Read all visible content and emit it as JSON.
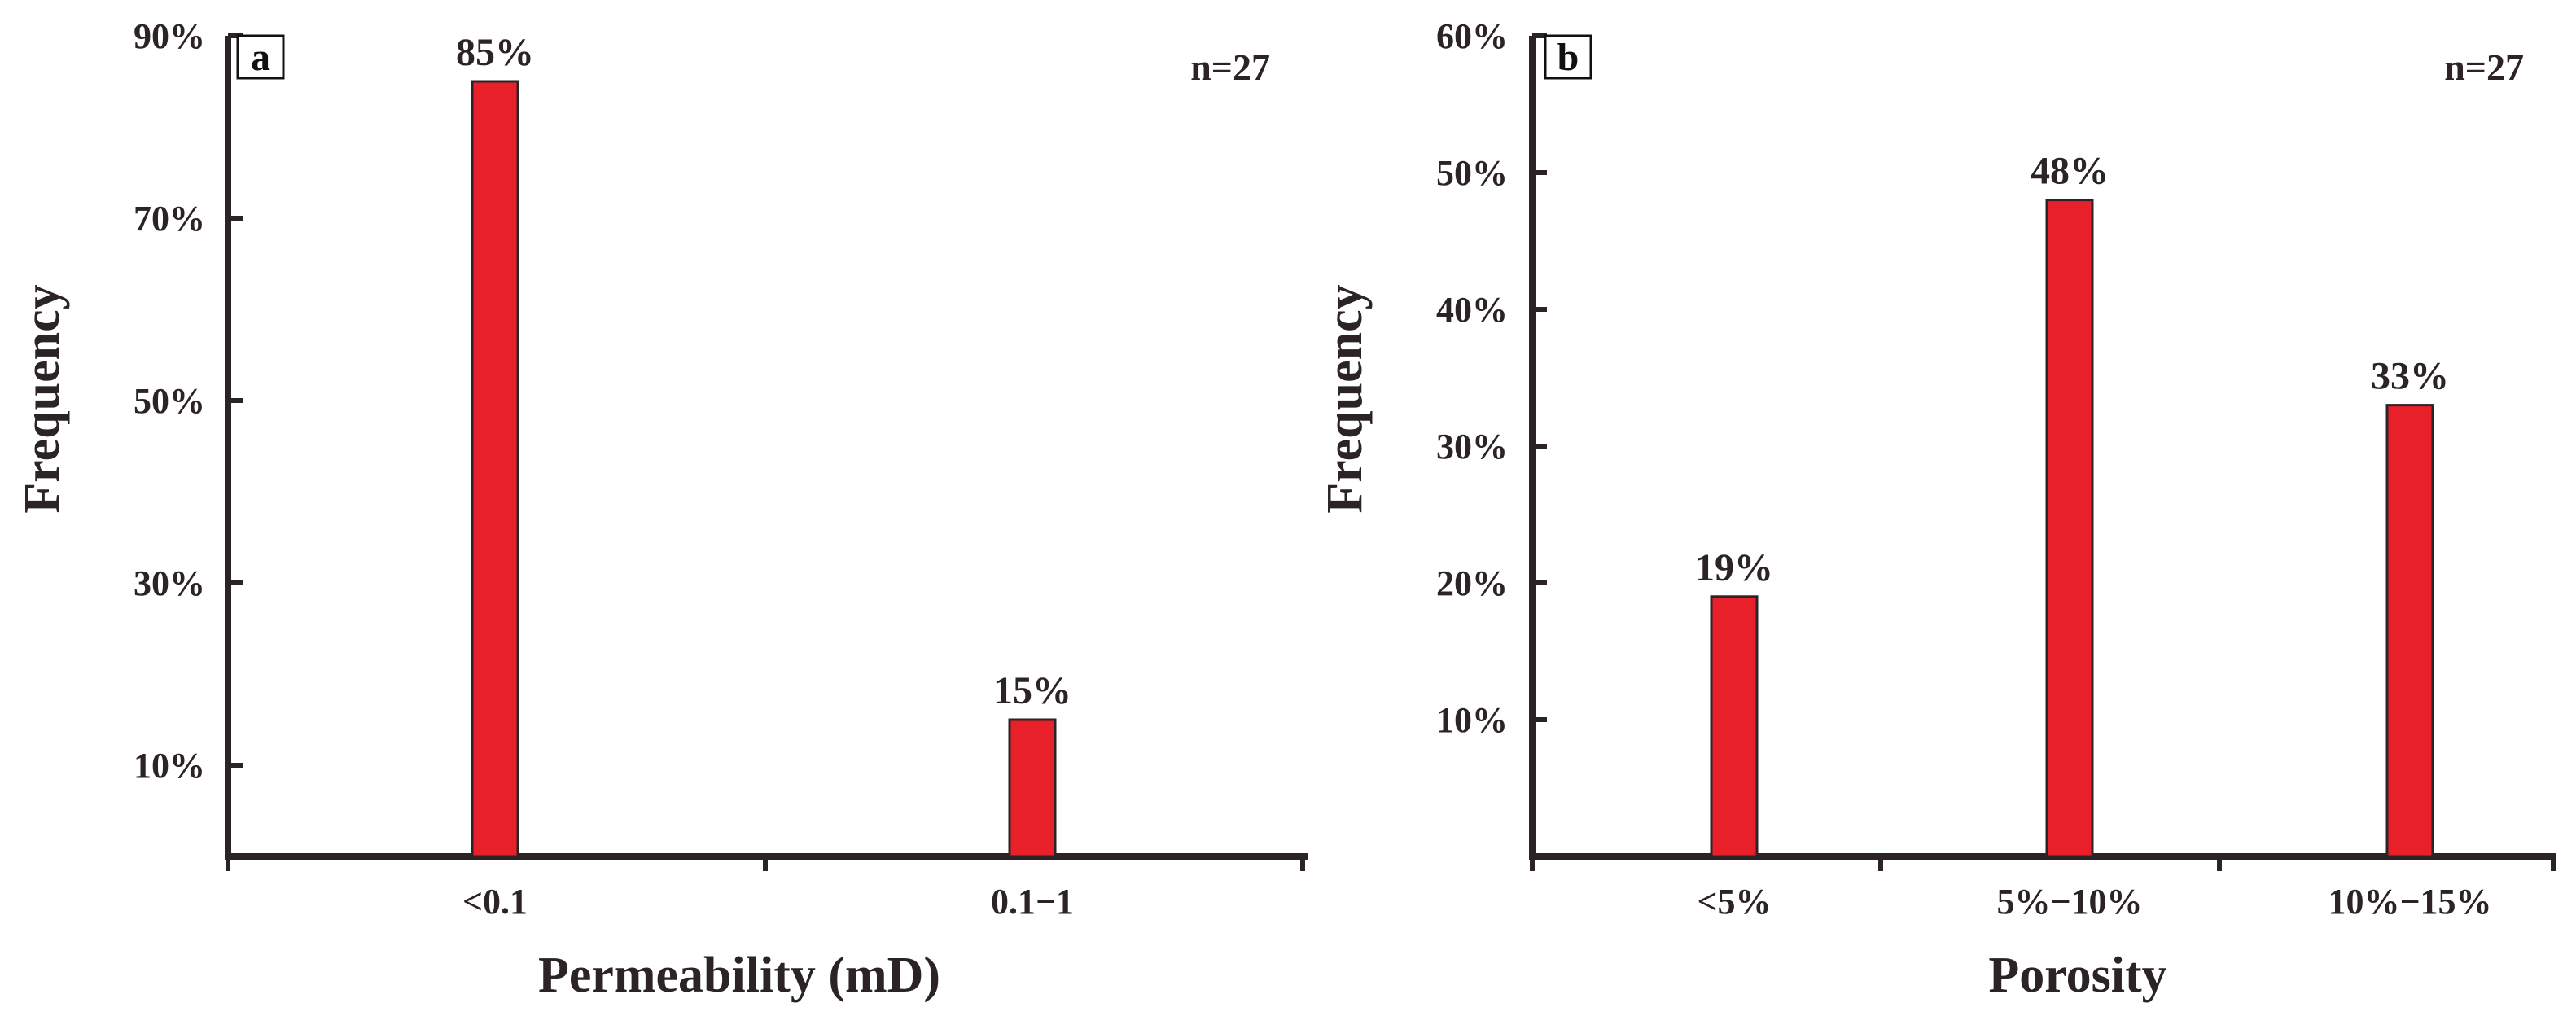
{
  "chart_data": [
    {
      "type": "bar",
      "panel_label": "a",
      "annotation": "n=27",
      "categories": [
        "<0.1",
        "0.1−1"
      ],
      "values": [
        85,
        15
      ],
      "value_labels": [
        "85%",
        "15%"
      ],
      "xlabel": "Permeability (mD)",
      "ylabel": "Frequency",
      "ylim": [
        0,
        90
      ],
      "yticks": [
        10,
        30,
        50,
        70,
        90
      ],
      "ytick_labels": [
        "10%",
        "30%",
        "50%",
        "70%",
        "90%"
      ],
      "bar_color": "#e8202a",
      "grid": false
    },
    {
      "type": "bar",
      "panel_label": "b",
      "annotation": "n=27",
      "categories": [
        "<5%",
        "5%−10%",
        "10%−15%"
      ],
      "values": [
        19,
        48,
        33
      ],
      "value_labels": [
        "19%",
        "48%",
        "33%"
      ],
      "xlabel": "Porosity",
      "ylabel": "Frequency",
      "ylim": [
        0,
        60
      ],
      "yticks": [
        10,
        20,
        30,
        40,
        50,
        60
      ],
      "ytick_labels": [
        "10%",
        "20%",
        "30%",
        "40%",
        "50%",
        "60%"
      ],
      "bar_color": "#e8202a",
      "grid": false
    }
  ]
}
